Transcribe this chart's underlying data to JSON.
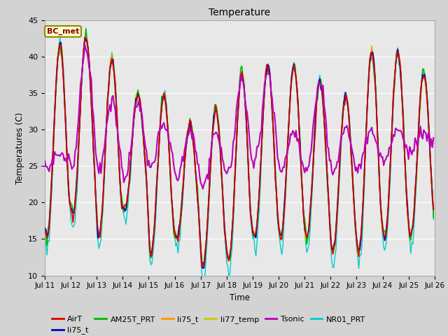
{
  "title": "Temperature",
  "ylabel": "Temperatures (C)",
  "xlabel": "Time",
  "ylim": [
    10,
    45
  ],
  "background_color": "#d3d3d3",
  "plot_background": "#e8e8e8",
  "legend_entries": [
    {
      "label": "AirT",
      "color": "#dd0000"
    },
    {
      "label": "li75_t",
      "color": "#0000cc"
    },
    {
      "label": "AM25T_PRT",
      "color": "#00bb00"
    },
    {
      "label": "li75_t",
      "color": "#ff9900"
    },
    {
      "label": "li77_temp",
      "color": "#cccc00"
    },
    {
      "label": "Tsonic",
      "color": "#bb00bb"
    },
    {
      "label": "NR01_PRT",
      "color": "#00cccc"
    }
  ],
  "xtick_labels": [
    "Jul 11",
    "Jul 12",
    "Jul 13",
    "Jul 14",
    "Jul 15",
    "Jul 16",
    "Jul 17",
    "Jul 18",
    "Jul 19",
    "Jul 20",
    "Jul 21",
    "Jul 22",
    "Jul 23",
    "Jul 24",
    "Jul 25",
    "Jul 26"
  ],
  "ytick_positions": [
    10,
    15,
    20,
    25,
    30,
    35,
    40,
    45
  ]
}
